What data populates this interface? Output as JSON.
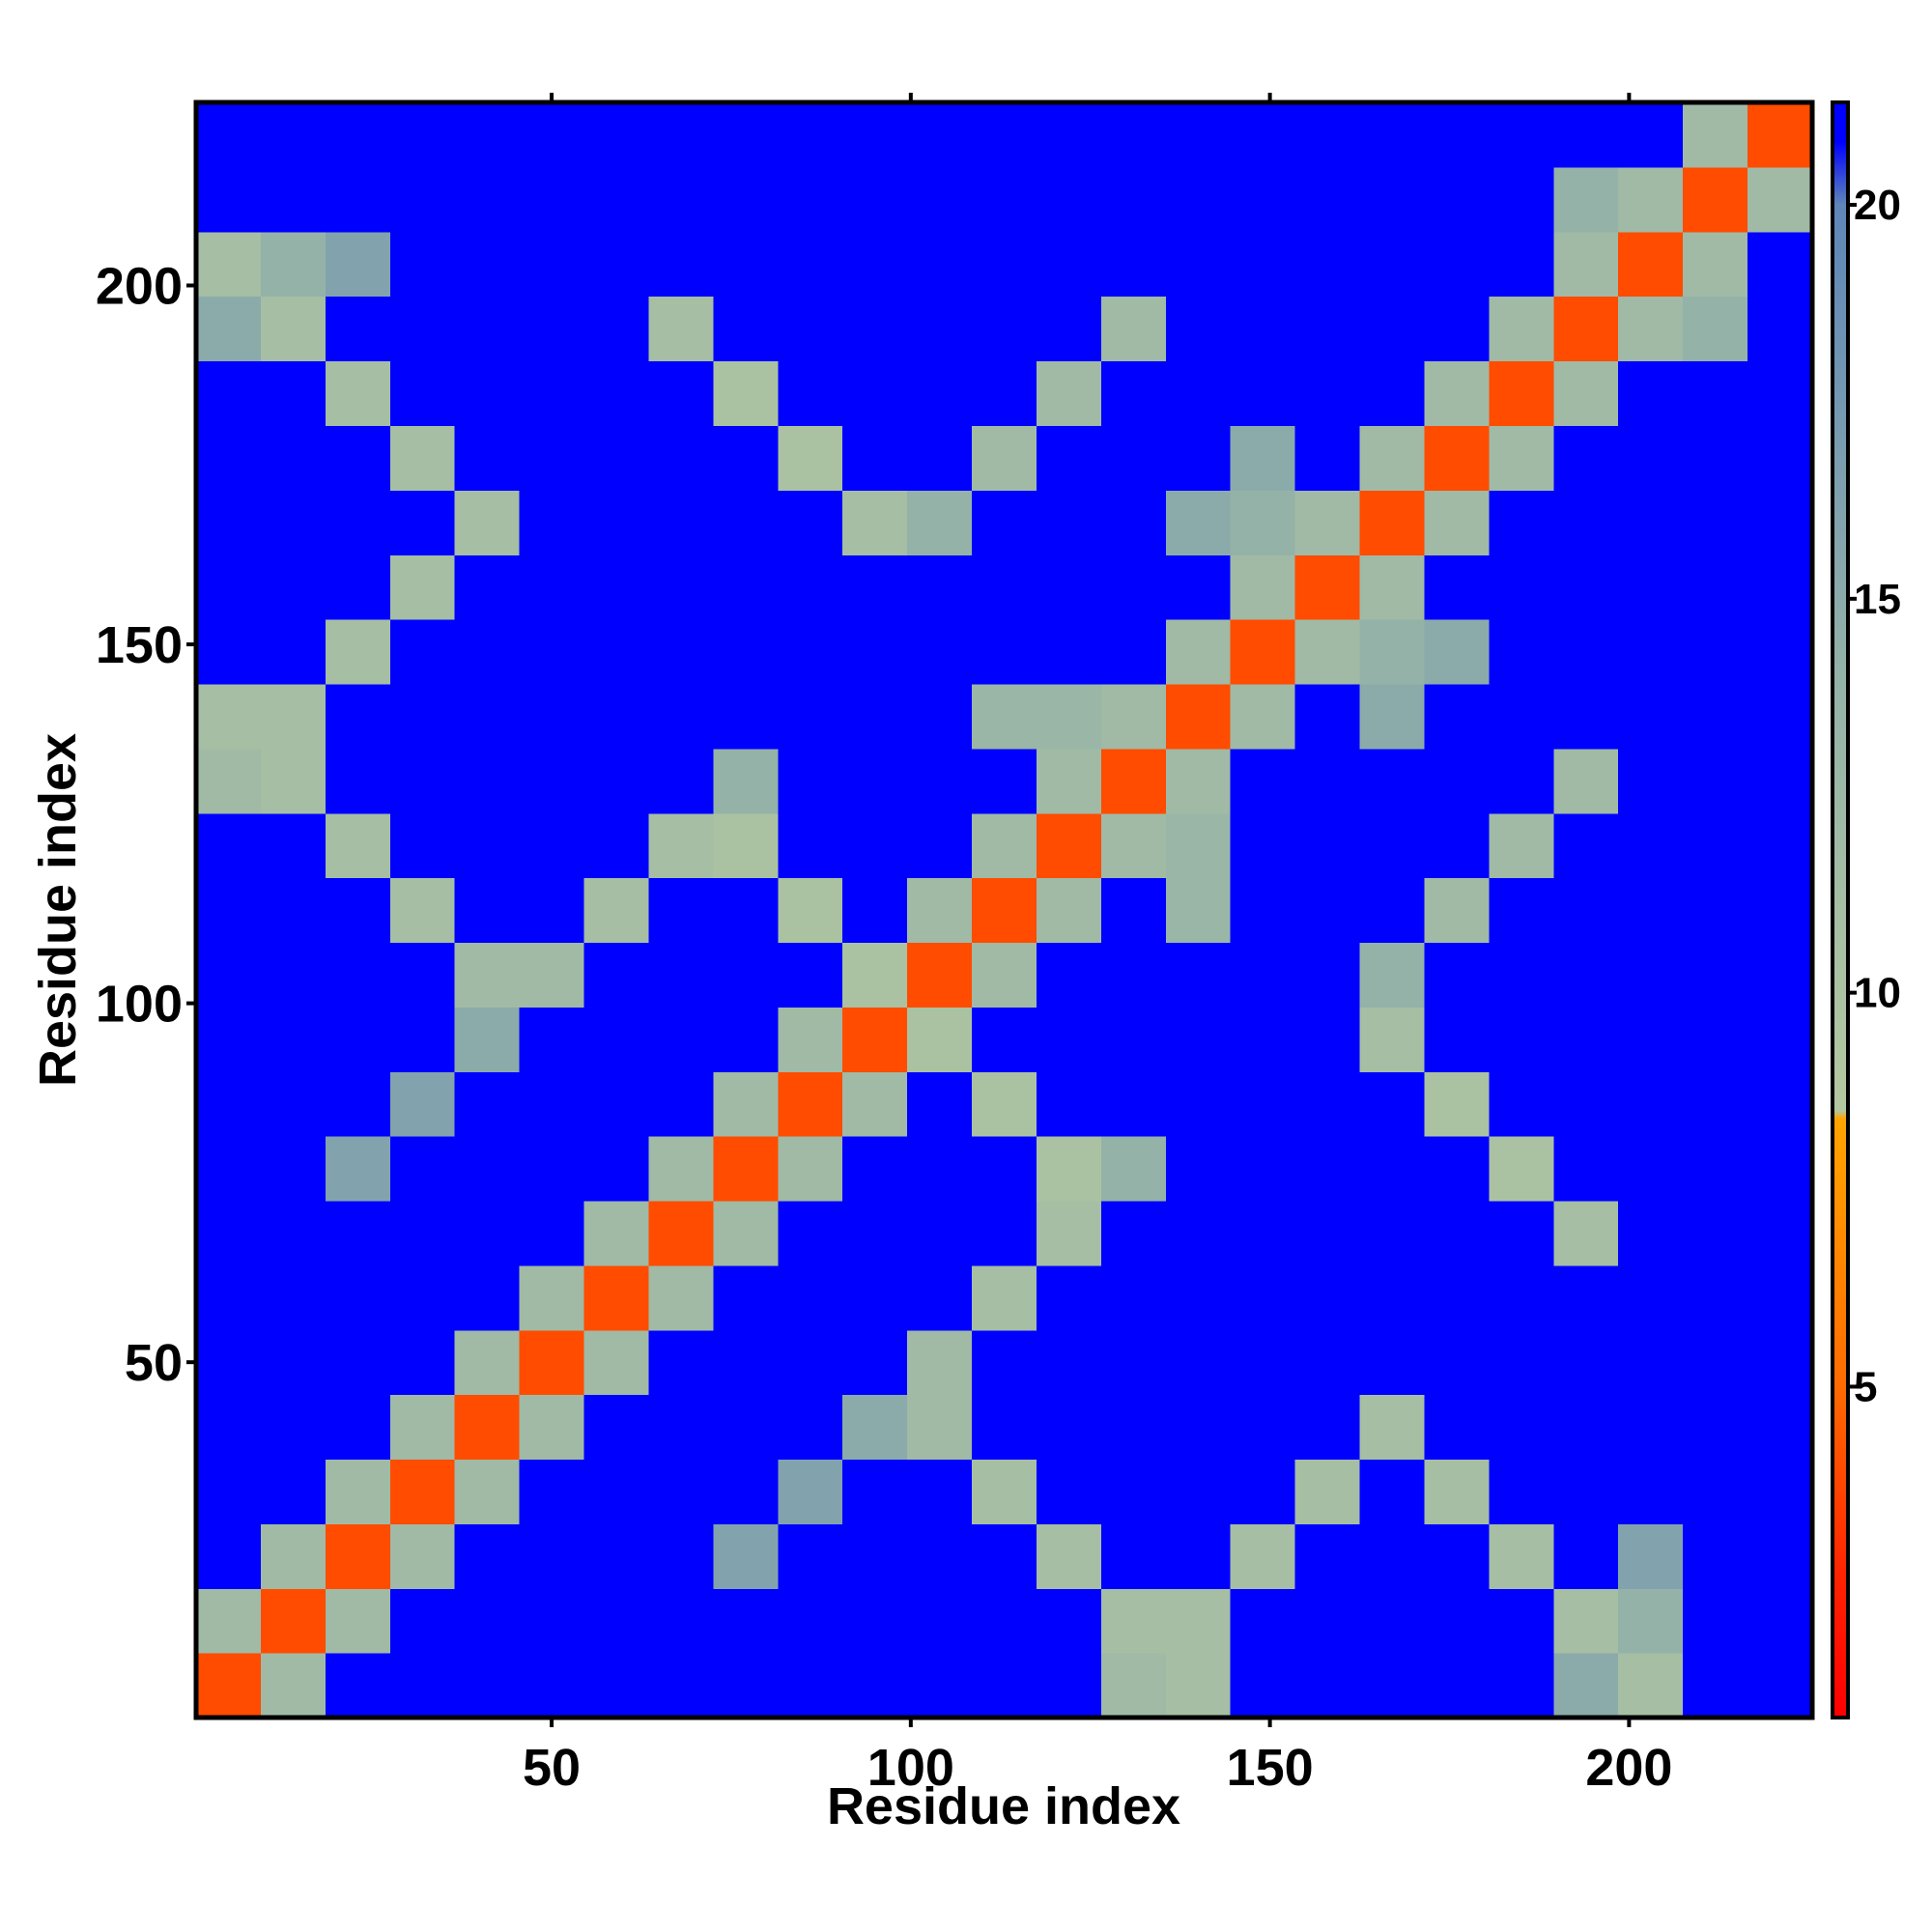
{
  "chart_data": {
    "type": "heatmap",
    "xlabel": "Residue index",
    "ylabel": "Residue index",
    "xlim": [
      0.5,
      225.5
    ],
    "ylim": [
      0.5,
      225.5
    ],
    "xticks": [
      50,
      100,
      150,
      200
    ],
    "yticks": [
      50,
      100,
      150,
      200
    ],
    "xbins": [
      0.5,
      9.5,
      18.5,
      27.5,
      36.5,
      45.5,
      54.5,
      63.5,
      72.5,
      81.5,
      90.5,
      99.5,
      108.5,
      117.5,
      126.5,
      135.5,
      144.5,
      153.5,
      162.5,
      171.5,
      180.5,
      189.5,
      198.5,
      207.5,
      216.5,
      225.5
    ],
    "ybins": [
      0.5,
      9.5,
      18.5,
      27.5,
      36.5,
      45.5,
      54.5,
      63.5,
      72.5,
      81.5,
      90.5,
      99.5,
      108.5,
      117.5,
      126.5,
      135.5,
      144.5,
      153.5,
      162.5,
      171.5,
      180.5,
      189.5,
      198.5,
      207.5,
      216.5,
      225.5
    ],
    "z": [
      [
        4,
        12,
        21,
        21,
        21,
        21,
        21,
        21,
        21,
        21,
        21,
        21,
        21,
        21,
        12,
        11,
        21,
        21,
        21,
        21,
        21,
        15,
        11,
        21,
        21
      ],
      [
        12,
        4,
        12,
        21,
        21,
        21,
        21,
        21,
        21,
        21,
        21,
        21,
        21,
        21,
        11,
        11,
        21,
        21,
        21,
        21,
        21,
        11,
        14,
        21,
        21
      ],
      [
        21,
        12,
        4,
        12,
        21,
        21,
        21,
        21,
        16,
        21,
        21,
        21,
        21,
        11,
        21,
        21,
        11,
        21,
        21,
        21,
        11,
        21,
        16,
        21,
        21
      ],
      [
        21,
        21,
        12,
        4,
        12,
        21,
        21,
        21,
        21,
        16,
        21,
        21,
        11,
        21,
        21,
        21,
        21,
        11,
        21,
        11,
        21,
        21,
        21,
        21,
        21
      ],
      [
        21,
        21,
        21,
        12,
        4,
        12,
        21,
        21,
        21,
        21,
        15,
        12,
        21,
        21,
        21,
        21,
        21,
        21,
        11,
        21,
        21,
        21,
        21,
        21,
        21
      ],
      [
        21,
        21,
        21,
        21,
        12,
        4,
        12,
        21,
        21,
        21,
        21,
        12,
        21,
        21,
        21,
        21,
        21,
        21,
        21,
        21,
        21,
        21,
        21,
        21,
        21
      ],
      [
        21,
        21,
        21,
        21,
        21,
        12,
        4,
        12,
        21,
        21,
        21,
        21,
        11,
        21,
        21,
        21,
        21,
        21,
        21,
        21,
        21,
        21,
        21,
        21,
        21
      ],
      [
        21,
        21,
        21,
        21,
        21,
        21,
        12,
        4,
        12,
        21,
        21,
        21,
        21,
        11,
        21,
        21,
        21,
        21,
        21,
        21,
        21,
        11,
        21,
        21,
        21
      ],
      [
        21,
        21,
        16,
        21,
        21,
        21,
        21,
        12,
        4,
        12,
        21,
        21,
        21,
        10,
        14,
        21,
        21,
        21,
        21,
        21,
        10,
        21,
        21,
        21,
        21
      ],
      [
        21,
        21,
        21,
        16,
        21,
        21,
        21,
        21,
        12,
        4,
        12,
        21,
        10,
        21,
        21,
        21,
        21,
        21,
        21,
        10,
        21,
        21,
        21,
        21,
        21
      ],
      [
        21,
        21,
        21,
        21,
        15,
        21,
        21,
        21,
        21,
        12,
        4,
        10,
        21,
        21,
        21,
        21,
        21,
        21,
        11,
        21,
        21,
        21,
        21,
        21,
        21
      ],
      [
        21,
        21,
        21,
        21,
        12,
        12,
        21,
        21,
        21,
        21,
        10,
        4,
        12,
        21,
        21,
        21,
        21,
        21,
        14,
        21,
        21,
        21,
        21,
        21,
        21
      ],
      [
        21,
        21,
        21,
        11,
        21,
        21,
        11,
        21,
        21,
        10,
        21,
        12,
        4,
        12,
        21,
        13,
        21,
        21,
        21,
        12,
        21,
        21,
        21,
        21,
        21
      ],
      [
        21,
        21,
        11,
        21,
        21,
        21,
        21,
        11,
        10,
        21,
        21,
        21,
        12,
        4,
        12,
        13,
        21,
        21,
        21,
        21,
        12,
        21,
        21,
        21,
        21
      ],
      [
        12,
        11,
        21,
        21,
        21,
        21,
        21,
        21,
        14,
        21,
        21,
        21,
        21,
        12,
        4,
        12,
        21,
        21,
        21,
        21,
        21,
        12,
        21,
        21,
        21
      ],
      [
        11,
        11,
        21,
        21,
        21,
        21,
        21,
        21,
        21,
        21,
        21,
        21,
        13,
        13,
        12,
        4,
        12,
        21,
        15,
        21,
        21,
        21,
        21,
        21,
        21
      ],
      [
        21,
        21,
        11,
        21,
        21,
        21,
        21,
        21,
        21,
        21,
        21,
        21,
        21,
        21,
        21,
        12,
        4,
        12,
        14,
        15,
        21,
        21,
        21,
        21,
        21
      ],
      [
        21,
        21,
        21,
        11,
        21,
        21,
        21,
        21,
        21,
        21,
        21,
        21,
        21,
        21,
        21,
        21,
        12,
        4,
        12,
        21,
        21,
        21,
        21,
        21,
        21
      ],
      [
        21,
        21,
        21,
        21,
        11,
        21,
        21,
        21,
        21,
        21,
        11,
        14,
        21,
        21,
        21,
        15,
        14,
        12,
        4,
        12,
        21,
        21,
        21,
        21,
        21
      ],
      [
        21,
        21,
        21,
        11,
        21,
        21,
        21,
        21,
        21,
        10,
        21,
        21,
        12,
        21,
        21,
        21,
        15,
        21,
        12,
        4,
        12,
        21,
        21,
        21,
        21
      ],
      [
        21,
        21,
        11,
        21,
        21,
        21,
        21,
        21,
        10,
        21,
        21,
        21,
        21,
        12,
        21,
        21,
        21,
        21,
        21,
        12,
        4,
        12,
        21,
        21,
        21
      ],
      [
        15,
        11,
        21,
        21,
        21,
        21,
        21,
        11,
        21,
        21,
        21,
        21,
        21,
        21,
        12,
        21,
        21,
        21,
        21,
        21,
        12,
        4,
        12,
        14,
        21
      ],
      [
        11,
        14,
        16,
        21,
        21,
        21,
        21,
        21,
        21,
        21,
        21,
        21,
        21,
        21,
        21,
        21,
        21,
        21,
        21,
        21,
        21,
        12,
        4,
        12,
        21
      ],
      [
        21,
        21,
        21,
        21,
        21,
        21,
        21,
        21,
        21,
        21,
        21,
        21,
        21,
        21,
        21,
        21,
        21,
        21,
        21,
        21,
        21,
        14,
        12,
        4,
        12
      ],
      [
        21,
        21,
        21,
        21,
        21,
        21,
        21,
        21,
        21,
        21,
        21,
        21,
        21,
        21,
        21,
        21,
        21,
        21,
        21,
        21,
        21,
        21,
        21,
        12,
        4
      ]
    ],
    "colorbar": {
      "lim": [
        0.8,
        21.3
      ],
      "ticks": [
        5,
        10,
        15,
        20
      ],
      "stops": [
        {
          "value": 0.8,
          "color": "#ff0000"
        },
        {
          "value": 2.5,
          "color": "#ff2000"
        },
        {
          "value": 5,
          "color": "#ff6a00"
        },
        {
          "value": 8.4,
          "color": "#ffa500"
        },
        {
          "value": 8.5,
          "color": "#b4c8a0"
        },
        {
          "value": 14,
          "color": "#94b2a8"
        },
        {
          "value": 20,
          "color": "#5e86b8"
        },
        {
          "value": 20.8,
          "color": "#0000ff"
        },
        {
          "value": 21.3,
          "color": "#0000ff"
        }
      ]
    }
  }
}
